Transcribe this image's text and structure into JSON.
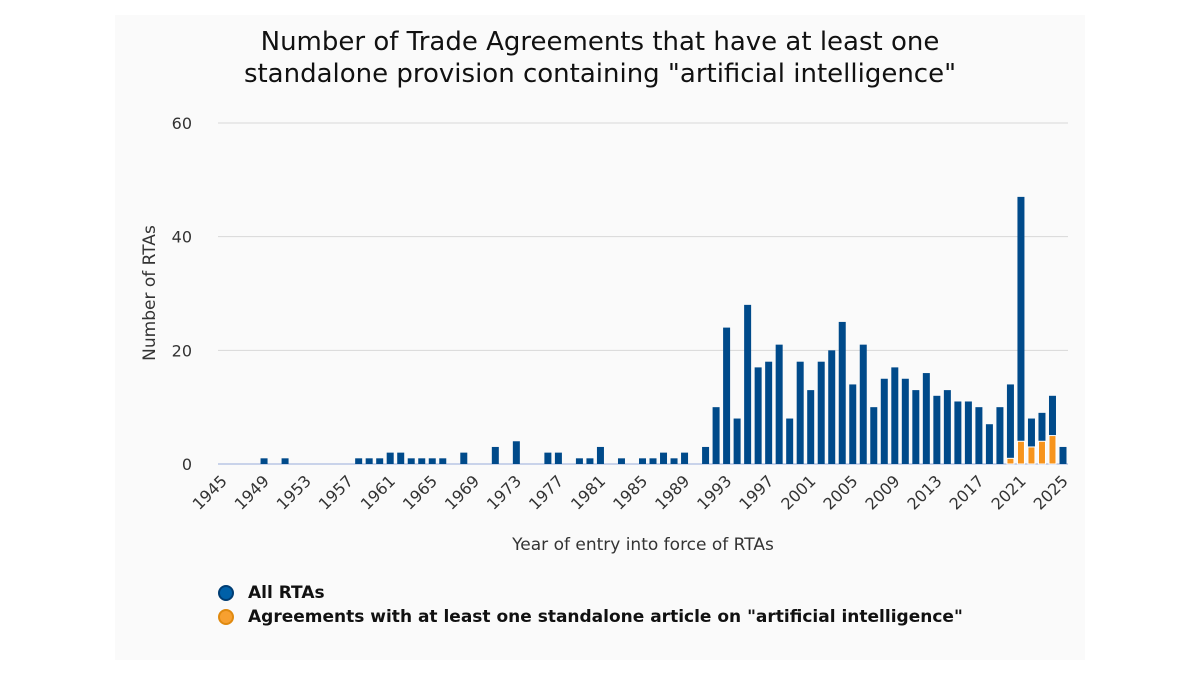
{
  "chart_data": {
    "type": "bar",
    "title_line1": "Number of Trade Agreements that have at least one",
    "title_line2": "standalone provision containing \"artificial intelligence\"",
    "xlabel": "Year of entry into force of RTAs",
    "ylabel": "Number of RTAs",
    "ylim": [
      0,
      60
    ],
    "yticks": [
      0,
      20,
      40,
      60
    ],
    "xrange": [
      1945,
      2025
    ],
    "xticks": [
      1945,
      1949,
      1953,
      1957,
      1961,
      1965,
      1969,
      1973,
      1977,
      1981,
      1985,
      1989,
      1993,
      1997,
      2001,
      2005,
      2009,
      2013,
      2017,
      2021,
      2025
    ],
    "grid": true,
    "legend_position": "bottom-left",
    "series": [
      {
        "name": "All RTAs",
        "color": "#004a8a",
        "points": {
          "1949": 1,
          "1951": 1,
          "1958": 1,
          "1959": 1,
          "1960": 1,
          "1961": 2,
          "1962": 2,
          "1963": 1,
          "1964": 1,
          "1965": 1,
          "1966": 1,
          "1968": 2,
          "1971": 3,
          "1973": 4,
          "1976": 2,
          "1977": 2,
          "1979": 1,
          "1980": 1,
          "1981": 3,
          "1983": 1,
          "1985": 1,
          "1986": 1,
          "1987": 2,
          "1988": 1,
          "1989": 2,
          "1991": 3,
          "1992": 10,
          "1993": 24,
          "1994": 8,
          "1995": 28,
          "1996": 17,
          "1997": 18,
          "1998": 21,
          "1999": 8,
          "2000": 18,
          "2001": 13,
          "2002": 18,
          "2003": 20,
          "2004": 25,
          "2005": 14,
          "2006": 21,
          "2007": 10,
          "2008": 15,
          "2009": 17,
          "2010": 15,
          "2011": 13,
          "2012": 16,
          "2013": 12,
          "2014": 13,
          "2015": 11,
          "2016": 11,
          "2017": 10,
          "2018": 7,
          "2019": 10,
          "2020": 14,
          "2021": 47,
          "2022": 8,
          "2023": 9,
          "2024": 12,
          "2025": 3
        }
      },
      {
        "name": "Agreements with at least one standalone article on \"artificial intelligence\"",
        "color": "#f7941d",
        "points": {
          "2020": 1,
          "2021": 4,
          "2022": 3,
          "2023": 4,
          "2024": 5
        }
      }
    ]
  }
}
